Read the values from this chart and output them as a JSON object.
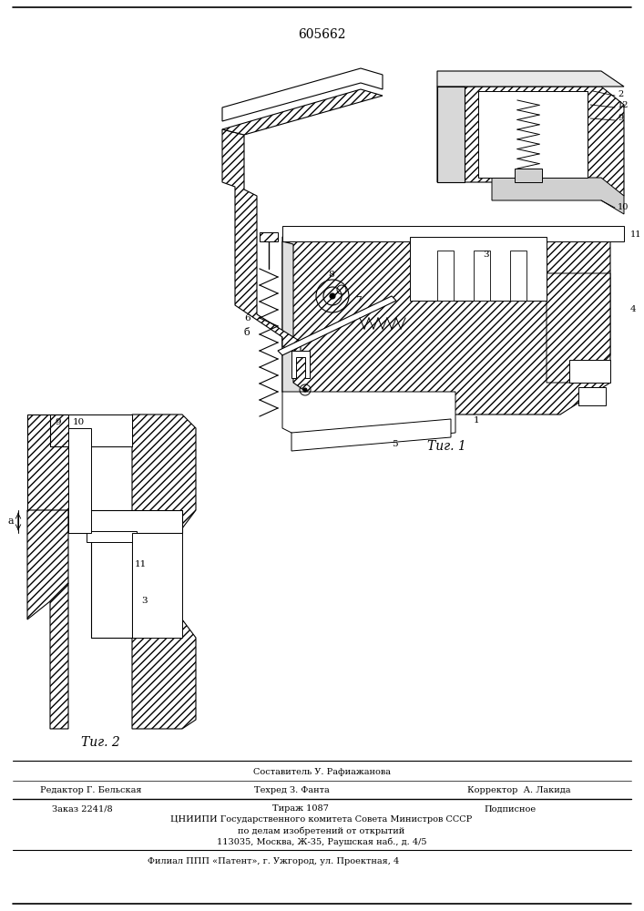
{
  "patent_number": "605662",
  "fig1_label": "Τиг. 1",
  "fig2_label": "Τиг. 2",
  "footer_composer": "Составитель У. Рафиажанова",
  "footer_editor": "Редактор Г. Бельская",
  "footer_techred": "Техред З. Фанта",
  "footer_corrector": "Корректор  А. Лакида",
  "footer_order": "Заказ 2241/8",
  "footer_tirazh": "Тираж 1087",
  "footer_podpisnoe": "Подписное",
  "footer_line1": "ЦНИИПИ Государственного комитета Совета Министров СССР",
  "footer_line2": "по делам изобретений от открытий",
  "footer_line3": "113035, Москва, Ж-35, Раушская наб., д. 4/5",
  "footer_line4": "Филиал ППП «Патент», г. Ужгород, ул. Проектная, 4",
  "bg_color": "#ffffff"
}
